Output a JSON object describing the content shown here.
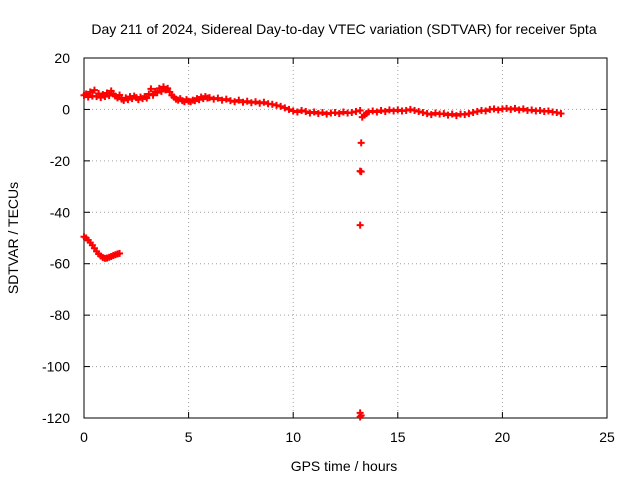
{
  "colors": {
    "series": "#ff0000",
    "grid": "#a0a0a0",
    "axis": "#000000"
  },
  "chart_data": {
    "type": "scatter",
    "title": "Day 211 of 2024, Sidereal Day-to-day VTEC variation (SDTVAR) for receiver 5pta",
    "xlabel": "GPS time / hours",
    "ylabel": "SDTVAR / TECUs",
    "xlim": [
      0,
      25
    ],
    "ylim": [
      -120,
      20
    ],
    "xticks": [
      0,
      5,
      10,
      15,
      20,
      25
    ],
    "yticks": [
      -120,
      -100,
      -80,
      -60,
      -40,
      -20,
      0,
      20
    ],
    "grid": true,
    "marker": "+",
    "series": [
      {
        "name": "SDTVAR",
        "points": [
          [
            0.0,
            5.5
          ],
          [
            0.1,
            6.0
          ],
          [
            0.2,
            4.8
          ],
          [
            0.3,
            6.8
          ],
          [
            0.4,
            5.2
          ],
          [
            0.5,
            7.5
          ],
          [
            0.6,
            5.0
          ],
          [
            0.7,
            6.2
          ],
          [
            0.8,
            4.6
          ],
          [
            0.9,
            5.8
          ],
          [
            1.0,
            5.0
          ],
          [
            1.1,
            6.4
          ],
          [
            1.2,
            5.4
          ],
          [
            1.3,
            7.2
          ],
          [
            1.4,
            6.0
          ],
          [
            1.5,
            5.2
          ],
          [
            1.6,
            4.5
          ],
          [
            1.7,
            5.6
          ],
          [
            1.8,
            4.0
          ],
          [
            1.9,
            3.5
          ],
          [
            2.0,
            4.5
          ],
          [
            2.1,
            3.8
          ],
          [
            2.2,
            5.0
          ],
          [
            2.3,
            4.2
          ],
          [
            2.4,
            5.2
          ],
          [
            2.5,
            4.6
          ],
          [
            2.6,
            3.8
          ],
          [
            2.7,
            4.8
          ],
          [
            2.8,
            4.2
          ],
          [
            2.9,
            5.0
          ],
          [
            3.0,
            4.4
          ],
          [
            3.1,
            6.0
          ],
          [
            3.2,
            8.0
          ],
          [
            3.3,
            5.5
          ],
          [
            3.4,
            7.0
          ],
          [
            3.5,
            6.5
          ],
          [
            3.6,
            8.2
          ],
          [
            3.7,
            7.0
          ],
          [
            3.8,
            8.8
          ],
          [
            3.9,
            7.6
          ],
          [
            4.0,
            8.2
          ],
          [
            4.1,
            6.8
          ],
          [
            4.2,
            5.5
          ],
          [
            4.3,
            4.8
          ],
          [
            4.4,
            4.0
          ],
          [
            4.5,
            3.6
          ],
          [
            4.6,
            4.2
          ],
          [
            4.7,
            3.4
          ],
          [
            4.8,
            3.0
          ],
          [
            4.9,
            3.8
          ],
          [
            5.0,
            3.2
          ],
          [
            5.1,
            3.0
          ],
          [
            5.2,
            3.6
          ],
          [
            5.3,
            3.4
          ],
          [
            5.4,
            4.2
          ],
          [
            5.5,
            3.8
          ],
          [
            5.6,
            4.8
          ],
          [
            5.7,
            4.2
          ],
          [
            5.8,
            5.0
          ],
          [
            5.9,
            4.4
          ],
          [
            6.0,
            4.6
          ],
          [
            6.2,
            4.0
          ],
          [
            6.4,
            4.4
          ],
          [
            6.6,
            3.6
          ],
          [
            6.8,
            4.0
          ],
          [
            7.0,
            3.4
          ],
          [
            7.2,
            3.0
          ],
          [
            7.4,
            3.6
          ],
          [
            7.6,
            2.8
          ],
          [
            7.8,
            3.2
          ],
          [
            8.0,
            2.6
          ],
          [
            8.2,
            3.0
          ],
          [
            8.4,
            2.4
          ],
          [
            8.6,
            2.8
          ],
          [
            8.8,
            2.2
          ],
          [
            9.0,
            2.0
          ],
          [
            9.2,
            1.6
          ],
          [
            9.4,
            1.2
          ],
          [
            9.6,
            0.6
          ],
          [
            9.8,
            0.0
          ],
          [
            10.0,
            -0.6
          ],
          [
            10.2,
            -1.0
          ],
          [
            10.4,
            -0.4
          ],
          [
            10.6,
            -0.8
          ],
          [
            10.8,
            -1.4
          ],
          [
            11.0,
            -1.0
          ],
          [
            11.2,
            -1.6
          ],
          [
            11.4,
            -1.2
          ],
          [
            11.6,
            -1.8
          ],
          [
            11.8,
            -1.4
          ],
          [
            12.0,
            -1.2
          ],
          [
            12.2,
            -1.6
          ],
          [
            12.4,
            -1.0
          ],
          [
            12.6,
            -1.4
          ],
          [
            12.8,
            -1.2
          ],
          [
            13.0,
            -0.8
          ],
          [
            13.2,
            -0.4
          ],
          [
            13.3,
            -3.0
          ],
          [
            13.4,
            -2.2
          ],
          [
            13.5,
            -1.6
          ],
          [
            13.6,
            -1.0
          ],
          [
            13.8,
            -0.6
          ],
          [
            14.0,
            -1.0
          ],
          [
            14.2,
            -0.4
          ],
          [
            14.4,
            -0.8
          ],
          [
            14.6,
            -0.2
          ],
          [
            14.8,
            -0.6
          ],
          [
            15.0,
            -0.2
          ],
          [
            15.2,
            -0.6
          ],
          [
            15.4,
            -0.4
          ],
          [
            15.6,
            0.0
          ],
          [
            15.8,
            -0.4
          ],
          [
            16.0,
            -0.8
          ],
          [
            16.2,
            -1.2
          ],
          [
            16.4,
            -1.6
          ],
          [
            16.6,
            -2.0
          ],
          [
            16.8,
            -1.4
          ],
          [
            17.0,
            -1.8
          ],
          [
            17.2,
            -1.6
          ],
          [
            17.4,
            -2.2
          ],
          [
            17.6,
            -1.8
          ],
          [
            17.8,
            -2.4
          ],
          [
            18.0,
            -1.8
          ],
          [
            18.2,
            -2.0
          ],
          [
            18.4,
            -1.6
          ],
          [
            18.6,
            -1.2
          ],
          [
            18.8,
            -0.8
          ],
          [
            19.0,
            -0.4
          ],
          [
            19.2,
            -0.6
          ],
          [
            19.4,
            0.0
          ],
          [
            19.6,
            0.2
          ],
          [
            19.8,
            -0.2
          ],
          [
            20.0,
            0.2
          ],
          [
            20.2,
            0.4
          ],
          [
            20.4,
            0.0
          ],
          [
            20.6,
            0.4
          ],
          [
            20.8,
            -0.2
          ],
          [
            21.0,
            0.2
          ],
          [
            21.2,
            -0.4
          ],
          [
            21.4,
            -0.2
          ],
          [
            21.6,
            -0.6
          ],
          [
            21.8,
            -0.4
          ],
          [
            22.0,
            -0.8
          ],
          [
            22.2,
            -0.6
          ],
          [
            22.4,
            -1.0
          ],
          [
            22.6,
            -1.2
          ],
          [
            22.8,
            -1.6
          ],
          [
            0.0,
            -49.5
          ],
          [
            0.1,
            -50.0
          ],
          [
            0.2,
            -50.8
          ],
          [
            0.3,
            -51.8
          ],
          [
            0.4,
            -52.8
          ],
          [
            0.5,
            -54.0
          ],
          [
            0.6,
            -55.2
          ],
          [
            0.7,
            -56.2
          ],
          [
            0.8,
            -57.0
          ],
          [
            0.9,
            -57.6
          ],
          [
            1.0,
            -57.9
          ],
          [
            1.1,
            -57.8
          ],
          [
            1.2,
            -57.5
          ],
          [
            1.3,
            -57.2
          ],
          [
            1.4,
            -56.8
          ],
          [
            1.5,
            -56.5
          ],
          [
            1.6,
            -56.2
          ],
          [
            1.7,
            -56.0
          ],
          [
            13.25,
            -13.0
          ],
          [
            13.2,
            -24.0
          ],
          [
            13.25,
            -24.2
          ],
          [
            13.2,
            -45.0
          ],
          [
            13.2,
            -118.0
          ],
          [
            13.25,
            -119.0
          ],
          [
            13.2,
            -119.6
          ]
        ]
      }
    ]
  }
}
